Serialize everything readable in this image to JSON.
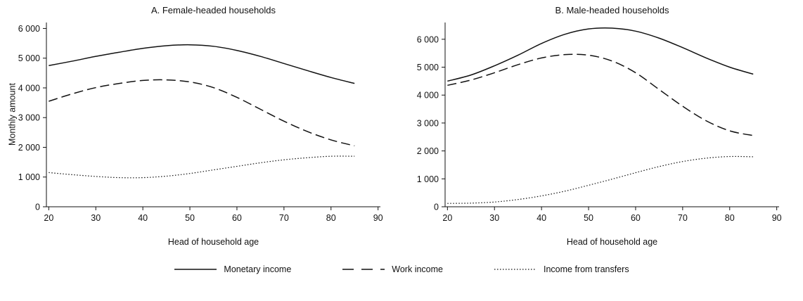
{
  "figure": {
    "background": "#ffffff",
    "line_color": "#111111"
  },
  "legend": {
    "items": [
      {
        "name": "monetary-income",
        "label": "Monetary income",
        "dash": ""
      },
      {
        "name": "work-income",
        "label": "Work income",
        "dash": "16 11"
      },
      {
        "name": "income-from-transfers",
        "label": "Income from transfers",
        "dash": "1.5 2.5"
      }
    ]
  },
  "chart_data": [
    {
      "type": "line",
      "title": "A. Female-headed households",
      "xlabel": "Head of household age",
      "ylabel": "Monthly amount",
      "xlim": [
        19.5,
        90.5
      ],
      "ylim": [
        0,
        6200
      ],
      "grid": false,
      "x_ticks": [
        20,
        30,
        40,
        50,
        60,
        70,
        80,
        90
      ],
      "y_ticks": [
        0,
        1000,
        2000,
        3000,
        4000,
        5000,
        6000
      ],
      "x": [
        20,
        25,
        30,
        35,
        40,
        45,
        50,
        55,
        60,
        65,
        70,
        75,
        80,
        85
      ],
      "series": [
        {
          "name": "Monetary income",
          "dash": "",
          "width": 1.5,
          "values": [
            4750,
            4900,
            5060,
            5200,
            5330,
            5420,
            5450,
            5400,
            5260,
            5060,
            4820,
            4580,
            4350,
            4150
          ]
        },
        {
          "name": "Work income",
          "dash": "13 6",
          "width": 1.5,
          "values": [
            3550,
            3800,
            4010,
            4150,
            4250,
            4270,
            4200,
            4010,
            3680,
            3280,
            2880,
            2530,
            2250,
            2050
          ]
        },
        {
          "name": "Income from transfers",
          "dash": "1.5 2.5",
          "width": 1.2,
          "values": [
            1150,
            1080,
            1020,
            980,
            980,
            1030,
            1120,
            1240,
            1360,
            1480,
            1580,
            1650,
            1700,
            1700
          ]
        }
      ]
    },
    {
      "type": "line",
      "title": "B. Male-headed households",
      "xlabel": "Head of household age",
      "ylabel": "",
      "xlim": [
        19.5,
        90.5
      ],
      "ylim": [
        0,
        6600
      ],
      "grid": false,
      "x_ticks": [
        20,
        30,
        40,
        50,
        60,
        70,
        80,
        90
      ],
      "y_ticks": [
        0,
        1000,
        2000,
        3000,
        4000,
        5000,
        6000
      ],
      "x": [
        20,
        25,
        30,
        35,
        40,
        45,
        50,
        55,
        60,
        65,
        70,
        75,
        80,
        85
      ],
      "series": [
        {
          "name": "Monetary income",
          "dash": "",
          "width": 1.5,
          "values": [
            4500,
            4720,
            5050,
            5430,
            5850,
            6180,
            6370,
            6400,
            6290,
            6040,
            5700,
            5330,
            5000,
            4750
          ]
        },
        {
          "name": "Work income",
          "dash": "13 6",
          "width": 1.5,
          "values": [
            4350,
            4540,
            4800,
            5090,
            5330,
            5450,
            5430,
            5220,
            4800,
            4200,
            3600,
            3080,
            2720,
            2550
          ]
        },
        {
          "name": "Income from transfers",
          "dash": "1.5 2.5",
          "width": 1.2,
          "values": [
            120,
            130,
            170,
            260,
            390,
            560,
            770,
            990,
            1220,
            1440,
            1620,
            1740,
            1800,
            1790
          ]
        }
      ]
    }
  ]
}
